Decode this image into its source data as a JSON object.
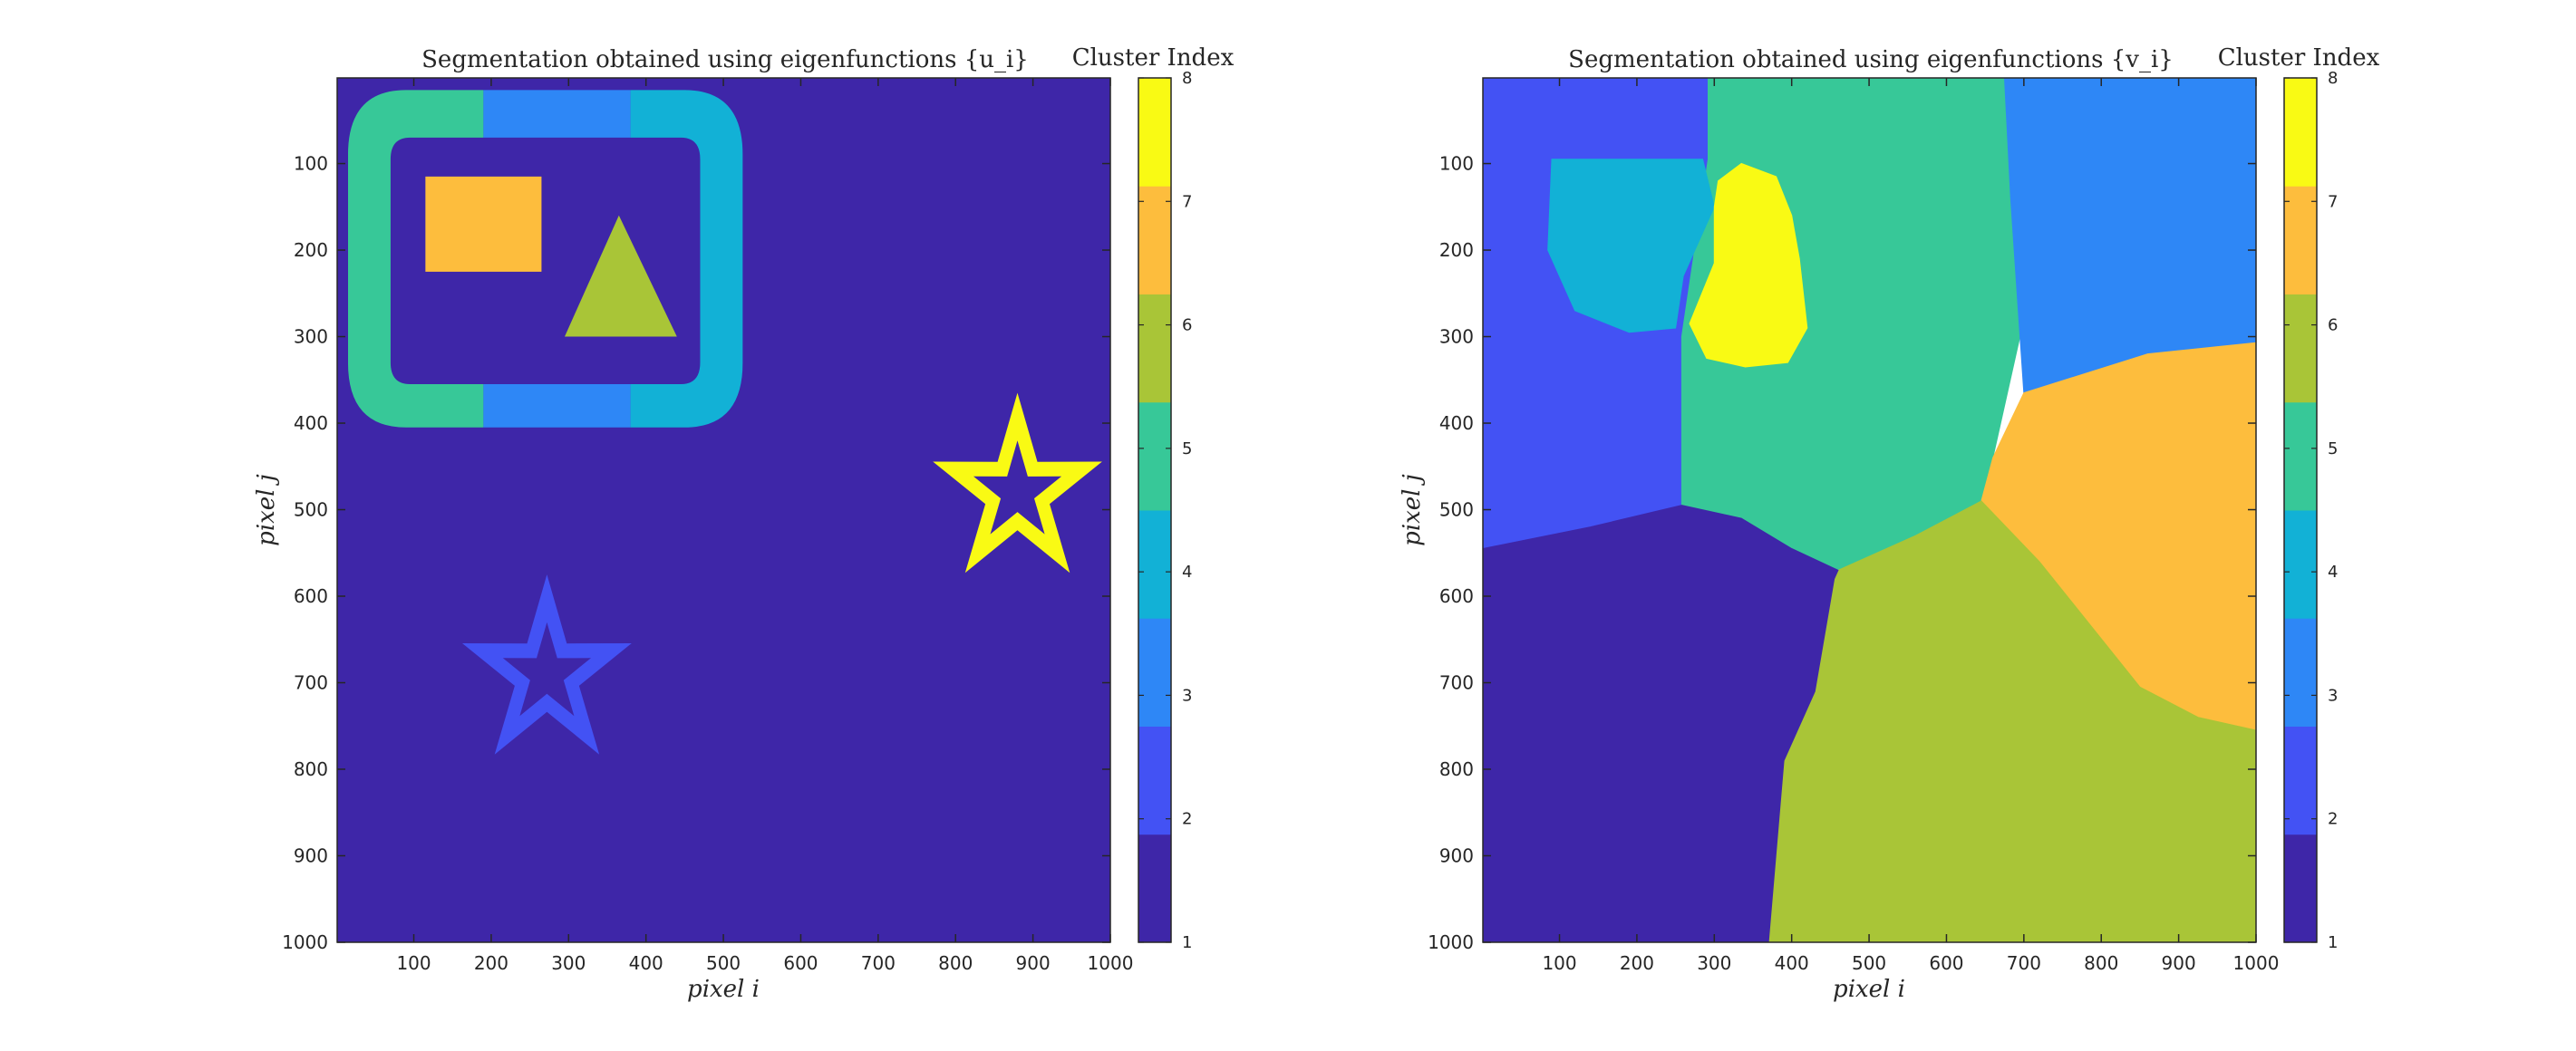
{
  "colors": {
    "c1": "#3e26a8",
    "c2": "#4352f4",
    "c3": "#2e87f6",
    "c4": "#12b1d6",
    "c5": "#37c898",
    "c6": "#a9c537",
    "c7": "#fdbd3d",
    "c8": "#f9fa14",
    "axis": "#262626"
  },
  "colorbar": {
    "label": "Cluster Index",
    "ticks": [
      1,
      2,
      3,
      4,
      5,
      6,
      7,
      8
    ]
  },
  "chart_data": [
    {
      "type": "heatmap",
      "title": "Segmentation obtained using eigenfunctions {u_i}",
      "xlabel": "pixel i",
      "ylabel": "pixel j",
      "xlim": [
        1,
        1000
      ],
      "ylim": [
        1,
        1000
      ],
      "y_direction": "reversed",
      "xticks": [
        100,
        200,
        300,
        400,
        500,
        600,
        700,
        800,
        900,
        1000
      ],
      "yticks": [
        100,
        200,
        300,
        400,
        500,
        600,
        700,
        800,
        900,
        1000
      ],
      "clim": [
        1,
        8
      ],
      "background_cluster": 1,
      "regions": [
        {
          "shape": "rounded-frame-segment",
          "cluster": 5,
          "x": [
            15,
            190
          ],
          "y": [
            15,
            405
          ],
          "note": "left part of frame"
        },
        {
          "shape": "rounded-frame-segment",
          "cluster": 3,
          "x": [
            190,
            380
          ],
          "y": [
            15,
            405
          ],
          "note": "middle part of frame"
        },
        {
          "shape": "rounded-frame-segment",
          "cluster": 4,
          "x": [
            380,
            525
          ],
          "y": [
            15,
            405
          ],
          "note": "right part of frame"
        },
        {
          "shape": "rectangle",
          "cluster": 7,
          "x": [
            115,
            265
          ],
          "y": [
            115,
            225
          ]
        },
        {
          "shape": "triangle",
          "cluster": 6,
          "vertices": [
            [
              365,
              160
            ],
            [
              295,
              300
            ],
            [
              440,
              300
            ]
          ]
        },
        {
          "shape": "star-outline",
          "cluster": 8,
          "center": [
            880,
            480
          ],
          "outer_radius": 115
        },
        {
          "shape": "star-outline",
          "cluster": 2,
          "center": [
            272,
            690
          ],
          "outer_radius": 115
        }
      ]
    },
    {
      "type": "heatmap",
      "title": "Segmentation obtained using eigenfunctions {v_i}",
      "xlabel": "pixel i",
      "ylabel": "pixel j",
      "xlim": [
        1,
        1000
      ],
      "ylim": [
        1,
        1000
      ],
      "y_direction": "reversed",
      "xticks": [
        100,
        200,
        300,
        400,
        500,
        600,
        700,
        800,
        900,
        1000
      ],
      "yticks": [
        100,
        200,
        300,
        400,
        500,
        600,
        700,
        800,
        900,
        1000
      ],
      "clim": [
        1,
        8
      ],
      "regions": [
        {
          "cluster": 2,
          "polygon": [
            [
              1,
              1
            ],
            [
              292,
              1
            ],
            [
              292,
              95
            ],
            [
              258,
              300
            ],
            [
              258,
              495
            ],
            [
              140,
              520
            ],
            [
              1,
              545
            ]
          ]
        },
        {
          "cluster": 5,
          "polygon": [
            [
              292,
              1
            ],
            [
              675,
              1
            ],
            [
              683,
              140
            ],
            [
              700,
              280
            ],
            [
              660,
              440
            ],
            [
              645,
              490
            ],
            [
              560,
              530
            ],
            [
              460,
              570
            ],
            [
              400,
              545
            ],
            [
              335,
              510
            ],
            [
              258,
              495
            ],
            [
              258,
              300
            ],
            [
              292,
              95
            ]
          ]
        },
        {
          "cluster": 3,
          "polygon": [
            [
              675,
              1
            ],
            [
              1000,
              1
            ],
            [
              1000,
              307
            ],
            [
              860,
              320
            ],
            [
              700,
              365
            ],
            [
              683,
              140
            ]
          ]
        },
        {
          "cluster": 7,
          "polygon": [
            [
              700,
              365
            ],
            [
              860,
              320
            ],
            [
              1000,
              307
            ],
            [
              1000,
              755
            ],
            [
              925,
              740
            ],
            [
              850,
              705
            ],
            [
              720,
              560
            ],
            [
              645,
              490
            ],
            [
              660,
              440
            ]
          ]
        },
        {
          "cluster": 6,
          "polygon": [
            [
              645,
              490
            ],
            [
              720,
              560
            ],
            [
              850,
              705
            ],
            [
              925,
              740
            ],
            [
              1000,
              755
            ],
            [
              1000,
              1000
            ],
            [
              370,
              1000
            ],
            [
              390,
              790
            ],
            [
              430,
              710
            ],
            [
              455,
              580
            ],
            [
              460,
              570
            ],
            [
              560,
              530
            ]
          ]
        },
        {
          "cluster": 1,
          "polygon": [
            [
              1,
              545
            ],
            [
              140,
              520
            ],
            [
              258,
              495
            ],
            [
              335,
              510
            ],
            [
              400,
              545
            ],
            [
              460,
              570
            ],
            [
              455,
              580
            ],
            [
              430,
              710
            ],
            [
              390,
              790
            ],
            [
              370,
              1000
            ],
            [
              1,
              1000
            ]
          ]
        },
        {
          "cluster": 4,
          "polygon": [
            [
              90,
              95
            ],
            [
              285,
              95
            ],
            [
              300,
              150
            ],
            [
              260,
              230
            ],
            [
              250,
              290
            ],
            [
              190,
              295
            ],
            [
              120,
              270
            ],
            [
              85,
              200
            ]
          ]
        },
        {
          "cluster": 8,
          "polygon": [
            [
              305,
              120
            ],
            [
              335,
              100
            ],
            [
              380,
              115
            ],
            [
              400,
              160
            ],
            [
              410,
              210
            ],
            [
              420,
              290
            ],
            [
              395,
              330
            ],
            [
              340,
              335
            ],
            [
              290,
              325
            ],
            [
              268,
              285
            ],
            [
              300,
              215
            ],
            [
              300,
              150
            ]
          ]
        }
      ]
    }
  ]
}
